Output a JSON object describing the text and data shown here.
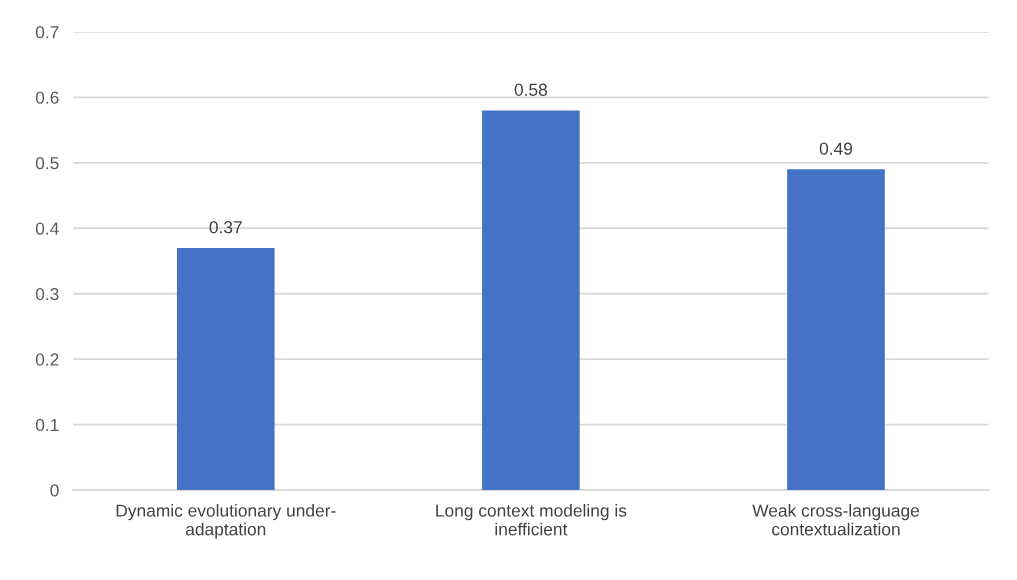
{
  "chart_data": {
    "type": "bar",
    "categories": [
      "Dynamic evolutionary under-\nadaptation",
      "Long context modeling is\ninefficient",
      "Weak cross-language\ncontextualization"
    ],
    "values": [
      0.37,
      0.58,
      0.49
    ],
    "color": "#4472c4",
    "ylim": [
      0,
      0.7
    ],
    "yticks": [
      {
        "value": 0,
        "label": "0"
      },
      0.1,
      0.2,
      0.3,
      0.4,
      0.5,
      0.6,
      0.7
    ],
    "grid": "y",
    "data_labels": true
  }
}
